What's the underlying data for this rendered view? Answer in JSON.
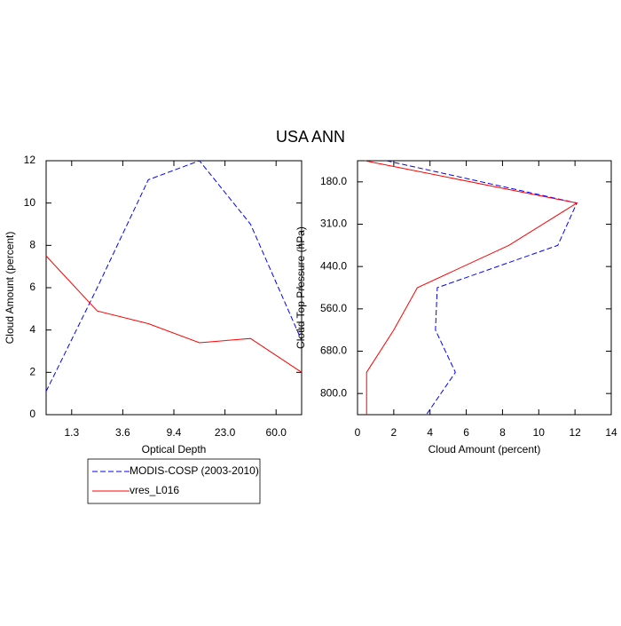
{
  "title": "USA ANN",
  "chart_data": [
    {
      "type": "line",
      "xlabel": "Optical Depth",
      "ylabel": "Cloud Amount (percent)",
      "x": [
        0,
        1,
        2,
        3,
        4,
        5
      ],
      "xlim": [
        0,
        5
      ],
      "xticks": [
        {
          "value": 0.5,
          "label": "1.3"
        },
        {
          "value": 1.5,
          "label": "3.6"
        },
        {
          "value": 2.5,
          "label": "9.4"
        },
        {
          "value": 3.5,
          "label": "23.0"
        },
        {
          "value": 4.5,
          "label": "60.0"
        }
      ],
      "ylim": [
        0,
        12
      ],
      "yticks": [
        0,
        2,
        4,
        6,
        8,
        10,
        12
      ],
      "series": [
        {
          "name": "MODIS-COSP (2003-2010)",
          "color": "#0000ff",
          "dash": true,
          "values": [
            1.1,
            6.0,
            11.1,
            12.0,
            9.0,
            3.5
          ]
        },
        {
          "name": "vres_L016",
          "color": "#ff0000",
          "dash": false,
          "values": [
            7.5,
            4.9,
            4.3,
            3.4,
            3.6,
            2.0
          ]
        }
      ]
    },
    {
      "type": "line",
      "orientation": "horizontal",
      "xlabel": "Cloud Amount (percent)",
      "ylabel": "Cloud Top Pressure (hPa)",
      "y": [
        0,
        1,
        2,
        3,
        4,
        5,
        6
      ],
      "ylim": [
        0,
        6
      ],
      "yreverse": true,
      "yticks": [
        {
          "value": 0.5,
          "label": "180.0"
        },
        {
          "value": 1.5,
          "label": "310.0"
        },
        {
          "value": 2.5,
          "label": "440.0"
        },
        {
          "value": 3.5,
          "label": "560.0"
        },
        {
          "value": 4.5,
          "label": "680.0"
        },
        {
          "value": 5.5,
          "label": "800.0"
        }
      ],
      "xlim": [
        0,
        14
      ],
      "xticks": [
        0,
        2,
        4,
        6,
        8,
        10,
        12,
        14
      ],
      "series": [
        {
          "color": "#0000ff",
          "dash": true,
          "values": [
            1.6,
            12.1,
            11.05,
            4.4,
            4.3,
            5.4,
            3.8
          ]
        },
        {
          "color": "#ff0000",
          "dash": false,
          "values": [
            0.4,
            12.1,
            8.35,
            3.3,
            2.0,
            0.5,
            0.5
          ]
        }
      ]
    }
  ]
}
